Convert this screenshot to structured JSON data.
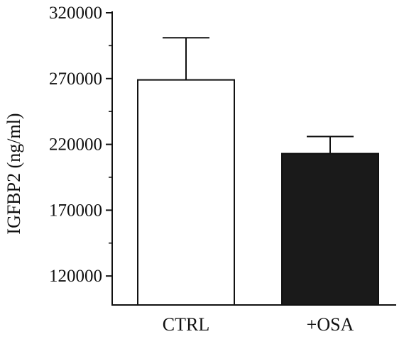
{
  "chart_data": {
    "type": "bar",
    "title": "",
    "xlabel": "",
    "ylabel": "IGFBP2 (ng/ml)",
    "categories": [
      "CTRL",
      "+OSA"
    ],
    "values": [
      269000,
      213000
    ],
    "error_upper": [
      301000,
      226000
    ],
    "ylim": [
      98000,
      320000
    ],
    "yticks": [
      120000,
      170000,
      220000,
      270000,
      320000
    ],
    "ytick_labels": [
      "120000",
      "170000",
      "220000",
      "270000",
      "320000"
    ],
    "bar_fills": [
      "#ffffff",
      "#1a1a1a"
    ],
    "bar_stroke": "#111111",
    "grid": false,
    "legend": "none"
  }
}
